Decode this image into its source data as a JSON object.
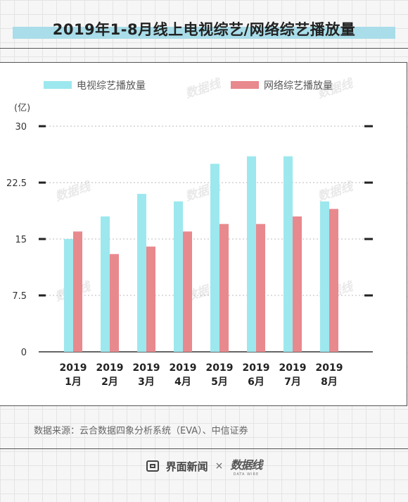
{
  "title": "2019年1-8月线上电视综艺/网络综艺播放量",
  "source": "数据来源：云合数据四象分析系统（EVA）、中信证券",
  "footer": {
    "brand": "界面新闻",
    "times": "×",
    "logo": "数据线",
    "logo_sub": "DATA WIRE"
  },
  "watermark": "数据线",
  "colors": {
    "tv": "#9ce8ee",
    "web": "#e8898e",
    "title_band": "#a9dde9"
  },
  "chart_data": {
    "type": "bar",
    "unit": "(亿)",
    "categories": [
      [
        "2019",
        "1月"
      ],
      [
        "2019",
        "2月"
      ],
      [
        "2019",
        "3月"
      ],
      [
        "2019",
        "4月"
      ],
      [
        "2019",
        "5月"
      ],
      [
        "2019",
        "6月"
      ],
      [
        "2019",
        "7月"
      ],
      [
        "2019",
        "8月"
      ]
    ],
    "series": [
      {
        "name": "电视综艺播放量",
        "values": [
          15,
          18,
          21,
          20,
          25,
          26,
          26,
          20
        ]
      },
      {
        "name": "网络综艺播放量",
        "values": [
          16,
          13,
          14,
          16,
          17,
          17,
          18,
          19
        ]
      }
    ],
    "yticks": [
      "30",
      "22.5",
      "15",
      "7.5",
      "0"
    ],
    "ylim": [
      0,
      30
    ],
    "grid": true,
    "legend": "top"
  }
}
